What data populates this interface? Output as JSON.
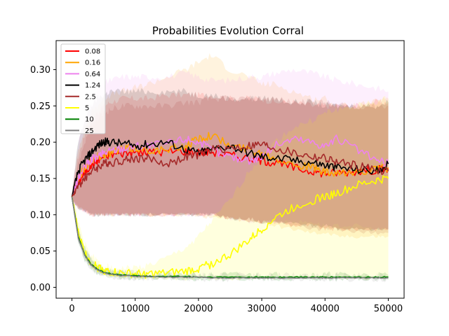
{
  "chart_data": {
    "type": "line",
    "title": "Probabilities Evolution Corral",
    "xlabel": "",
    "ylabel": "",
    "xlim": [
      -2500,
      52500
    ],
    "ylim": [
      -0.015,
      0.34
    ],
    "xticks": [
      0,
      10000,
      20000,
      30000,
      40000,
      50000
    ],
    "xtick_labels": [
      "0",
      "10000",
      "20000",
      "30000",
      "40000",
      "50000"
    ],
    "yticks": [
      0.0,
      0.05,
      0.1,
      0.15,
      0.2,
      0.25,
      0.3
    ],
    "ytick_labels": [
      "0.00",
      "0.05",
      "0.10",
      "0.15",
      "0.20",
      "0.25",
      "0.30"
    ],
    "legend_position": "top-left",
    "grid": false,
    "x": [
      0,
      1000,
      2000,
      3000,
      4000,
      5000,
      6000,
      8000,
      10000,
      12000,
      15000,
      18000,
      20000,
      22000,
      25000,
      28000,
      30000,
      32000,
      35000,
      38000,
      40000,
      42000,
      45000,
      48000,
      50000
    ],
    "series": [
      {
        "name": "0.08",
        "color": "#ff0000",
        "values": [
          0.125,
          0.145,
          0.158,
          0.168,
          0.175,
          0.18,
          0.183,
          0.185,
          0.186,
          0.186,
          0.187,
          0.188,
          0.186,
          0.187,
          0.182,
          0.178,
          0.175,
          0.172,
          0.165,
          0.16,
          0.157,
          0.158,
          0.16,
          0.162,
          0.163
        ],
        "band_low": [
          0.12,
          0.11,
          0.105,
          0.1,
          0.1,
          0.1,
          0.1,
          0.1,
          0.1,
          0.1,
          0.1,
          0.1,
          0.1,
          0.1,
          0.095,
          0.095,
          0.09,
          0.09,
          0.085,
          0.085,
          0.08,
          0.08,
          0.08,
          0.08,
          0.08
        ],
        "band_high": [
          0.13,
          0.18,
          0.21,
          0.23,
          0.24,
          0.25,
          0.255,
          0.26,
          0.26,
          0.26,
          0.265,
          0.265,
          0.265,
          0.265,
          0.26,
          0.26,
          0.26,
          0.255,
          0.255,
          0.25,
          0.25,
          0.25,
          0.25,
          0.255,
          0.255
        ]
      },
      {
        "name": "0.16",
        "color": "#ffa500",
        "values": [
          0.125,
          0.15,
          0.165,
          0.175,
          0.18,
          0.183,
          0.185,
          0.19,
          0.192,
          0.19,
          0.188,
          0.195,
          0.205,
          0.21,
          0.195,
          0.19,
          0.185,
          0.18,
          0.17,
          0.165,
          0.158,
          0.155,
          0.16,
          0.162,
          0.165
        ],
        "band_low": [
          0.12,
          0.11,
          0.105,
          0.1,
          0.1,
          0.1,
          0.1,
          0.1,
          0.1,
          0.1,
          0.1,
          0.1,
          0.1,
          0.095,
          0.095,
          0.09,
          0.09,
          0.085,
          0.08,
          0.075,
          0.075,
          0.07,
          0.07,
          0.07,
          0.07
        ],
        "band_high": [
          0.13,
          0.19,
          0.22,
          0.24,
          0.25,
          0.26,
          0.265,
          0.27,
          0.275,
          0.28,
          0.29,
          0.3,
          0.31,
          0.32,
          0.3,
          0.29,
          0.28,
          0.28,
          0.27,
          0.26,
          0.26,
          0.25,
          0.25,
          0.255,
          0.26
        ]
      },
      {
        "name": "0.64",
        "color": "#ee82ee",
        "values": [
          0.125,
          0.15,
          0.165,
          0.175,
          0.18,
          0.185,
          0.188,
          0.192,
          0.195,
          0.195,
          0.198,
          0.205,
          0.2,
          0.19,
          0.18,
          0.175,
          0.18,
          0.195,
          0.205,
          0.2,
          0.195,
          0.205,
          0.19,
          0.175,
          0.17
        ],
        "band_low": [
          0.12,
          0.11,
          0.105,
          0.1,
          0.1,
          0.1,
          0.1,
          0.1,
          0.1,
          0.1,
          0.1,
          0.1,
          0.1,
          0.1,
          0.095,
          0.09,
          0.09,
          0.09,
          0.09,
          0.09,
          0.085,
          0.085,
          0.085,
          0.08,
          0.08
        ],
        "band_high": [
          0.13,
          0.2,
          0.23,
          0.25,
          0.27,
          0.28,
          0.285,
          0.29,
          0.29,
          0.29,
          0.29,
          0.295,
          0.29,
          0.285,
          0.285,
          0.29,
          0.29,
          0.295,
          0.3,
          0.295,
          0.29,
          0.285,
          0.28,
          0.275,
          0.27
        ]
      },
      {
        "name": "1.24",
        "color": "#000000",
        "values": [
          0.125,
          0.16,
          0.175,
          0.185,
          0.195,
          0.2,
          0.2,
          0.198,
          0.195,
          0.197,
          0.2,
          0.19,
          0.185,
          0.19,
          0.195,
          0.185,
          0.18,
          0.178,
          0.175,
          0.172,
          0.168,
          0.165,
          0.162,
          0.16,
          0.17
        ],
        "band_low": [
          0.12,
          0.11,
          0.105,
          0.1,
          0.1,
          0.1,
          0.1,
          0.1,
          0.1,
          0.1,
          0.1,
          0.1,
          0.1,
          0.1,
          0.095,
          0.095,
          0.09,
          0.09,
          0.09,
          0.085,
          0.085,
          0.08,
          0.08,
          0.08,
          0.08
        ],
        "band_high": [
          0.13,
          0.2,
          0.23,
          0.25,
          0.26,
          0.265,
          0.27,
          0.27,
          0.27,
          0.27,
          0.27,
          0.27,
          0.265,
          0.265,
          0.26,
          0.26,
          0.26,
          0.26,
          0.255,
          0.255,
          0.25,
          0.25,
          0.25,
          0.25,
          0.255
        ]
      },
      {
        "name": "2.5",
        "color": "#a52a2a",
        "values": [
          0.125,
          0.14,
          0.15,
          0.16,
          0.165,
          0.17,
          0.172,
          0.175,
          0.178,
          0.178,
          0.17,
          0.18,
          0.182,
          0.19,
          0.192,
          0.195,
          0.197,
          0.192,
          0.185,
          0.18,
          0.178,
          0.172,
          0.168,
          0.162,
          0.16
        ],
        "band_low": [
          0.12,
          0.11,
          0.105,
          0.1,
          0.1,
          0.1,
          0.1,
          0.1,
          0.1,
          0.1,
          0.1,
          0.1,
          0.1,
          0.1,
          0.095,
          0.09,
          0.09,
          0.09,
          0.085,
          0.08,
          0.08,
          0.08,
          0.075,
          0.075,
          0.075
        ],
        "band_high": [
          0.13,
          0.17,
          0.2,
          0.22,
          0.23,
          0.24,
          0.245,
          0.25,
          0.25,
          0.25,
          0.25,
          0.255,
          0.255,
          0.26,
          0.26,
          0.26,
          0.26,
          0.26,
          0.255,
          0.255,
          0.255,
          0.25,
          0.25,
          0.25,
          0.25
        ]
      },
      {
        "name": "5",
        "color": "#ffff00",
        "values": [
          0.125,
          0.075,
          0.048,
          0.035,
          0.028,
          0.024,
          0.021,
          0.019,
          0.018,
          0.018,
          0.019,
          0.022,
          0.026,
          0.032,
          0.045,
          0.065,
          0.08,
          0.095,
          0.11,
          0.12,
          0.125,
          0.13,
          0.14,
          0.147,
          0.15
        ],
        "band_low": [
          0.12,
          0.065,
          0.04,
          0.028,
          0.022,
          0.018,
          0.016,
          0.014,
          0.013,
          0.012,
          0.012,
          0.012,
          0.012,
          0.012,
          0.012,
          0.013,
          0.013,
          0.013,
          0.013,
          0.013,
          0.013,
          0.013,
          0.013,
          0.013,
          0.013
        ],
        "band_high": [
          0.13,
          0.09,
          0.06,
          0.045,
          0.036,
          0.03,
          0.028,
          0.026,
          0.027,
          0.03,
          0.04,
          0.055,
          0.07,
          0.09,
          0.12,
          0.16,
          0.18,
          0.2,
          0.22,
          0.23,
          0.24,
          0.245,
          0.25,
          0.255,
          0.26
        ]
      },
      {
        "name": "10",
        "color": "#008000",
        "values": [
          0.125,
          0.07,
          0.045,
          0.032,
          0.025,
          0.021,
          0.019,
          0.017,
          0.016,
          0.015,
          0.015,
          0.015,
          0.014,
          0.014,
          0.014,
          0.014,
          0.014,
          0.014,
          0.014,
          0.014,
          0.014,
          0.014,
          0.014,
          0.014,
          0.014
        ],
        "band_low": [
          0.12,
          0.062,
          0.038,
          0.026,
          0.02,
          0.017,
          0.015,
          0.013,
          0.012,
          0.012,
          0.012,
          0.012,
          0.011,
          0.011,
          0.011,
          0.011,
          0.011,
          0.011,
          0.011,
          0.011,
          0.011,
          0.011,
          0.011,
          0.011,
          0.011
        ],
        "band_high": [
          0.13,
          0.08,
          0.054,
          0.04,
          0.031,
          0.026,
          0.023,
          0.021,
          0.02,
          0.019,
          0.018,
          0.018,
          0.017,
          0.017,
          0.017,
          0.017,
          0.017,
          0.017,
          0.017,
          0.017,
          0.017,
          0.017,
          0.017,
          0.017,
          0.017
        ]
      },
      {
        "name": "25",
        "color": "#808080",
        "values": [
          0.125,
          0.068,
          0.044,
          0.031,
          0.024,
          0.02,
          0.018,
          0.016,
          0.015,
          0.015,
          0.014,
          0.014,
          0.014,
          0.013,
          0.013,
          0.013,
          0.013,
          0.013,
          0.013,
          0.013,
          0.013,
          0.013,
          0.013,
          0.013,
          0.013
        ],
        "band_low": [
          0.12,
          0.06,
          0.037,
          0.025,
          0.019,
          0.016,
          0.014,
          0.012,
          0.011,
          0.011,
          0.011,
          0.011,
          0.01,
          0.01,
          0.01,
          0.01,
          0.01,
          0.01,
          0.01,
          0.01,
          0.01,
          0.01,
          0.01,
          0.01,
          0.01
        ],
        "band_high": [
          0.13,
          0.078,
          0.052,
          0.038,
          0.03,
          0.025,
          0.022,
          0.02,
          0.019,
          0.018,
          0.018,
          0.017,
          0.017,
          0.016,
          0.016,
          0.016,
          0.016,
          0.016,
          0.016,
          0.016,
          0.016,
          0.016,
          0.016,
          0.016,
          0.016
        ]
      }
    ]
  }
}
